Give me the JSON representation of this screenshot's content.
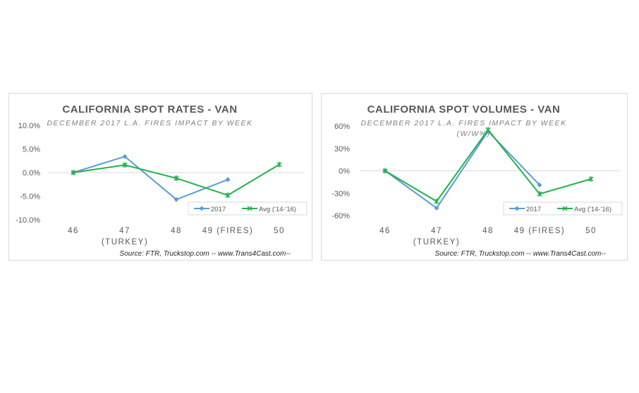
{
  "chart_data": [
    {
      "type": "line",
      "title": "CALIFORNIA SPOT RATES  - VAN",
      "subtitle": "DECEMBER 2017 L.A. FIRES IMPACT BY WEEK",
      "source": "Source: FTR, Truckstop.com -- www.Trans4Cast.com--",
      "categories": [
        "46",
        "47",
        "48",
        "49 (FIRES)",
        "50"
      ],
      "category_sublabels": [
        "",
        "(TURKEY)",
        "",
        "",
        ""
      ],
      "yticks": [
        "10.0%",
        "5.0%",
        "0.0%",
        "-5.0%",
        "-10.0%"
      ],
      "ylim": [
        -10,
        10
      ],
      "unit": "%",
      "grid": "zero-line only",
      "legend": "bottom-right",
      "series": [
        {
          "name": "2017",
          "color": "#5b9bd5",
          "marker": "diamond",
          "values": [
            0,
            3.4,
            -5.7,
            -1.5,
            null
          ]
        },
        {
          "name": "Avg ('14-'16)",
          "color": "#22b14c",
          "marker": "star",
          "values": [
            0,
            1.6,
            -1.2,
            -4.8,
            1.7
          ]
        }
      ]
    },
    {
      "type": "line",
      "title": "CALIFORNIA SPOT VOLUMES  - VAN",
      "subtitle": "DECEMBER 2017 L.A. FIRES IMPACT BY WEEK",
      "subtitle2": "(W/W%)",
      "source": "Source: FTR, Truckstop.com -- www.Trans4Cast.com--",
      "categories": [
        "46",
        "47",
        "48",
        "49 (FIRES)",
        "50"
      ],
      "category_sublabels": [
        "",
        "(TURKEY)",
        "",
        "",
        ""
      ],
      "yticks": [
        "60%",
        "30%",
        "0%",
        "-30%",
        "-60%"
      ],
      "ylim": [
        -60,
        60
      ],
      "unit": "%",
      "grid": "zero-line only",
      "legend": "bottom-right",
      "series": [
        {
          "name": "2017",
          "color": "#5b9bd5",
          "marker": "diamond",
          "values": [
            0,
            -50,
            53,
            -19,
            null
          ]
        },
        {
          "name": "Avg ('14-'16)",
          "color": "#22b14c",
          "marker": "star",
          "values": [
            0,
            -41,
            55,
            -31,
            -11
          ]
        }
      ]
    }
  ]
}
